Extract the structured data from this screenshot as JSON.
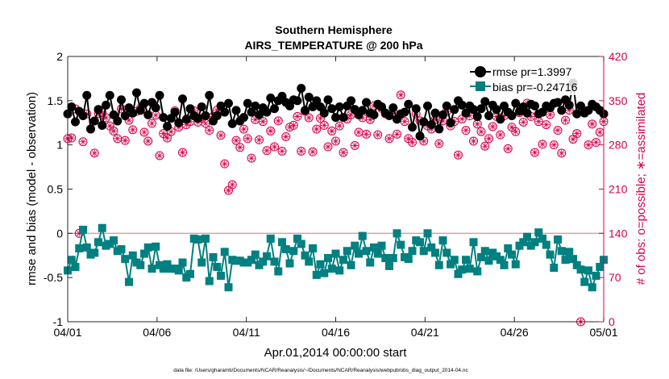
{
  "chart_data": {
    "type": "line",
    "title": "Southern Hemisphere",
    "subtitle": "AIRS_TEMPERATURE @ 200 hPa",
    "xlabel": "Apr.01,2014 00:00:00 start",
    "ylabel_left": "rmse and bias (model - observation)",
    "ylabel_right": "# of obs: o=possible; ∗=assimilated",
    "footnote": "data file: /Users/gharamti/Documents/NCAR/Reanalysis/~/Documents/NCAR/Reanalysis/webpub/obs_diag_output_2014-04.nc",
    "x_range": [
      0,
      30
    ],
    "x_ticks": [
      0,
      5,
      10,
      15,
      20,
      25,
      30
    ],
    "x_tick_labels": [
      "04/01",
      "04/06",
      "04/11",
      "04/16",
      "04/21",
      "04/26",
      "05/01"
    ],
    "ylim_left": [
      -1,
      2
    ],
    "y_ticks_left": [
      -1,
      -0.5,
      0,
      0.5,
      1,
      1.5,
      2
    ],
    "y_tick_labels_left": [
      "-1",
      "-0.5",
      "0",
      "0.5",
      "1",
      "1.5",
      "2"
    ],
    "ylim_right": [
      0,
      420
    ],
    "y_ticks_right": [
      0,
      70,
      140,
      210,
      280,
      350,
      420
    ],
    "y_tick_labels_right": [
      "0",
      "70",
      "140",
      "210",
      "280",
      "350",
      "420"
    ],
    "zero_line": 0,
    "colors": {
      "rmse": "#000000",
      "bias": "#008080",
      "obs": "#d6004c",
      "zero_line": "#d8a0a8"
    },
    "legend": {
      "location": "top-right",
      "entries": [
        "rmse pr=1.3997",
        "bias pr=-0.24716"
      ]
    },
    "series": [
      {
        "name": "rmse pr=1.3997",
        "axis": "left",
        "values": [
          1.35,
          1.43,
          1.26,
          1.38,
          1.33,
          1.56,
          1.18,
          1.27,
          1.4,
          1.22,
          1.45,
          1.56,
          1.34,
          1.27,
          1.51,
          1.33,
          1.42,
          1.36,
          1.59,
          1.39,
          1.47,
          1.34,
          1.48,
          1.42,
          1.56,
          1.31,
          1.21,
          1.3,
          1.37,
          1.25,
          1.52,
          1.29,
          1.41,
          1.33,
          1.3,
          1.43,
          1.33,
          1.56,
          1.27,
          1.33,
          1.44,
          1.37,
          1.47,
          1.24,
          1.39,
          1.27,
          1.31,
          1.47,
          1.37,
          1.44,
          1.34,
          1.42,
          1.37,
          1.53,
          1.41,
          1.5,
          1.55,
          1.48,
          1.44,
          1.51,
          1.5,
          1.64,
          1.39,
          1.54,
          1.43,
          1.5,
          1.43,
          1.36,
          1.51,
          1.41,
          1.31,
          1.43,
          1.31,
          1.44,
          1.5,
          1.4,
          1.34,
          1.39,
          1.48,
          1.36,
          1.34,
          1.46,
          1.43,
          1.36,
          1.33,
          1.42,
          1.29,
          1.35,
          1.37,
          1.46,
          1.2,
          1.41,
          1.1,
          1.26,
          1.44,
          1.23,
          1.36,
          1.18,
          1.34,
          1.44,
          1.25,
          1.4,
          1.5,
          1.45,
          1.36,
          1.44,
          1.4,
          1.32,
          1.41,
          1.49,
          1.33,
          1.45,
          1.4,
          1.29,
          1.44,
          1.37,
          1.33,
          1.47,
          1.38,
          1.43,
          1.36,
          1.46,
          1.44,
          1.35,
          1.37,
          1.44,
          1.42,
          1.47,
          1.48,
          1.39,
          1.51,
          1.45,
          1.7,
          1.35,
          1.44,
          1.36,
          1.39,
          1.46,
          1.43,
          1.39,
          1.35
        ]
      },
      {
        "name": "bias pr=-0.24716",
        "axis": "left",
        "values": [
          -0.42,
          -0.3,
          -0.38,
          -0.17,
          0.04,
          -0.16,
          -0.24,
          -0.22,
          -0.1,
          0.06,
          -0.14,
          -0.12,
          -0.08,
          -0.2,
          -0.18,
          -0.29,
          -0.55,
          -0.25,
          -0.33,
          -0.36,
          -0.23,
          -0.16,
          -0.4,
          -0.15,
          -0.36,
          -0.4,
          -0.35,
          -0.4,
          -0.4,
          -0.42,
          -0.33,
          -0.5,
          -0.46,
          -0.06,
          -0.07,
          -0.33,
          -0.06,
          -0.54,
          -0.27,
          -0.38,
          -0.48,
          -0.21,
          -0.61,
          -0.3,
          -0.31,
          -0.31,
          -0.33,
          -0.33,
          -0.3,
          -0.24,
          -0.36,
          -0.32,
          -0.26,
          -0.06,
          -0.32,
          -0.43,
          -0.1,
          -0.18,
          -0.34,
          -0.2,
          -0.06,
          -0.12,
          -0.25,
          -0.32,
          -0.17,
          -0.47,
          -0.35,
          -0.45,
          -0.28,
          -0.4,
          -0.23,
          -0.42,
          -0.3,
          -0.2,
          -0.36,
          -0.14,
          -0.23,
          -0.03,
          -0.2,
          -0.33,
          -0.16,
          -0.23,
          -0.14,
          -0.28,
          -0.37,
          -0.28,
          0.0,
          -0.13,
          -0.27,
          -0.29,
          -0.2,
          -0.08,
          -0.1,
          -0.2,
          0.0,
          -0.16,
          -0.22,
          -0.36,
          -0.08,
          -0.22,
          -0.35,
          -0.3,
          -0.46,
          -0.41,
          -0.3,
          -0.4,
          -0.1,
          -0.43,
          -0.27,
          -0.2,
          -0.31,
          -0.22,
          -0.26,
          -0.3,
          -0.36,
          -0.17,
          -0.24,
          -0.35,
          -0.14,
          -0.1,
          -0.04,
          -0.14,
          -0.1,
          0.01,
          -0.06,
          -0.13,
          -0.24,
          -0.39,
          -0.07,
          -0.2,
          -0.3,
          -0.21,
          -0.29,
          -0.36,
          -0.41,
          -0.55,
          -0.42,
          -0.61,
          -0.48,
          -0.38,
          -0.3
        ]
      },
      {
        "name": "obs possible / assimilated",
        "axis": "right",
        "values": [
          290,
          291,
          337,
          140,
          285,
          329,
          305,
          267,
          330,
          331,
          323,
          310,
          302,
          290,
          337,
          287,
          319,
          304,
          333,
          338,
          300,
          286,
          314,
          327,
          263,
          298,
          291,
          301,
          334,
          308,
          268,
          312,
          317,
          334,
          316,
          322,
          314,
          303,
          325,
          335,
          295,
          250,
          208,
          217,
          287,
          276,
          305,
          290,
          259,
          320,
          288,
          317,
          271,
          302,
          277,
          318,
          270,
          293,
          308,
          311,
          325,
          270,
          333,
          323,
          269,
          305,
          322,
          311,
          277,
          302,
          286,
          310,
          268,
          321,
          328,
          279,
          300,
          323,
          297,
          320,
          342,
          296,
          338,
          329,
          290,
          331,
          297,
          359,
          317,
          290,
          284,
          329,
          318,
          286,
          310,
          305,
          320,
          282,
          318,
          333,
          310,
          317,
          264,
          321,
          303,
          326,
          286,
          313,
          301,
          278,
          290,
          309,
          325,
          296,
          326,
          274,
          308,
          301,
          331,
          316,
          346,
          325,
          268,
          317,
          281,
          312,
          328,
          280,
          303,
          267,
          319,
          335,
          289,
          298,
          0,
          334,
          280,
          313,
          284,
          300,
          317
        ]
      }
    ]
  }
}
